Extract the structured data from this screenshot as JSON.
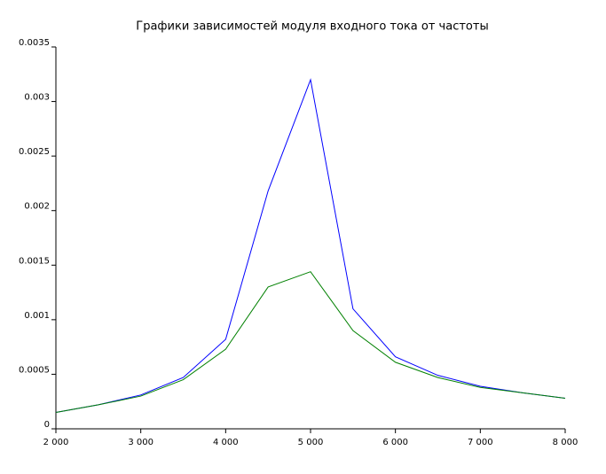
{
  "chart_data": {
    "type": "line",
    "title": "Графики зависимостей модуля входного тока от частоты",
    "x": [
      2000,
      2500,
      3000,
      3500,
      4000,
      4500,
      5000,
      5500,
      6000,
      6500,
      7000,
      7500,
      8000
    ],
    "series": [
      {
        "color": "#0000ff",
        "values": [
          0.00015,
          0.00022,
          0.00031,
          0.00047,
          0.00082,
          0.00218,
          0.0032,
          0.0011,
          0.00066,
          0.00049,
          0.00039,
          0.00033,
          0.00028
        ]
      },
      {
        "color": "#008000",
        "values": [
          0.00015,
          0.00022,
          0.0003,
          0.00045,
          0.00073,
          0.0013,
          0.00144,
          0.0009,
          0.00061,
          0.00047,
          0.00038,
          0.00033,
          0.00028
        ]
      }
    ],
    "xlim": [
      2000,
      8000
    ],
    "xticks": [
      {
        "value": 2000,
        "label": "2 000"
      },
      {
        "value": 3000,
        "label": "3 000"
      },
      {
        "value": 4000,
        "label": "4 000"
      },
      {
        "value": 5000,
        "label": "5 000"
      },
      {
        "value": 6000,
        "label": "6 000"
      },
      {
        "value": 7000,
        "label": "7 000"
      },
      {
        "value": 8000,
        "label": "8 000"
      }
    ],
    "ylim": [
      0,
      0.0035
    ],
    "yticks": [
      0,
      0.0005,
      0.001,
      0.0015,
      0.002,
      0.0025,
      0.003,
      0.0035
    ]
  }
}
